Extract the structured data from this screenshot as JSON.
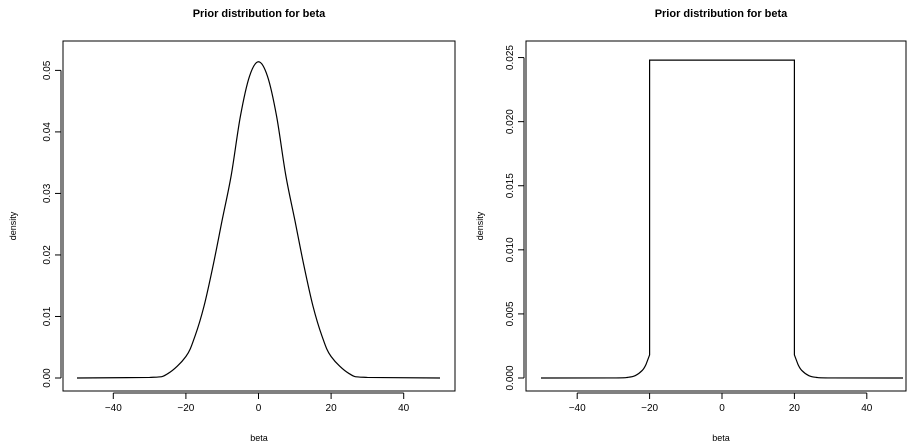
{
  "chart_data": [
    {
      "type": "line",
      "title": "Prior distribution for beta",
      "xlabel": "beta",
      "ylabel": "density",
      "xlim": [
        -50,
        50
      ],
      "ylim": [
        0,
        0.0525
      ],
      "xticks": [
        -40,
        -20,
        0,
        20,
        40
      ],
      "xtick_labels": [
        "−40",
        "−20",
        "0",
        "20",
        "40"
      ],
      "yticks": [
        0,
        0.01,
        0.02,
        0.03,
        0.04,
        0.05
      ],
      "ytick_labels": [
        "0.00",
        "0.01",
        "0.02",
        "0.03",
        "0.04",
        "0.05"
      ],
      "grid": false,
      "line_color": "#000000",
      "series": [
        {
          "x": [
            -50,
            -30,
            -25,
            -20,
            -17.5,
            -15,
            -12.5,
            -10,
            -7.5,
            -5,
            -2.5,
            0,
            2.5,
            5,
            7.5,
            10,
            12.5,
            15,
            17.5,
            20,
            25,
            30,
            50
          ],
          "y": [
            0.0,
            9e-05,
            0.0007,
            0.0035,
            0.0068,
            0.0117,
            0.0183,
            0.0257,
            0.033,
            0.0425,
            0.049,
            0.0514,
            0.049,
            0.0425,
            0.033,
            0.0257,
            0.0183,
            0.0117,
            0.0068,
            0.0035,
            0.0007,
            9e-05,
            0.0
          ]
        }
      ]
    },
    {
      "type": "line",
      "title": "Prior distribution for beta",
      "xlabel": "beta",
      "ylabel": "density",
      "xlim": [
        -50,
        50
      ],
      "ylim": [
        0,
        0.0252
      ],
      "xticks": [
        -40,
        -20,
        0,
        20,
        40
      ],
      "xtick_labels": [
        "−40",
        "−20",
        "0",
        "20",
        "40"
      ],
      "yticks": [
        0,
        0.005,
        0.01,
        0.015,
        0.02,
        0.025
      ],
      "ytick_labels": [
        "0.000",
        "0.005",
        "0.010",
        "0.015",
        "0.020",
        "0.025"
      ],
      "grid": false,
      "line_color": "#000000",
      "series": [
        {
          "x": [
            -50,
            -30,
            -26,
            -24,
            -22,
            -21,
            -20,
            -20,
            20,
            20,
            21,
            22,
            24,
            26,
            30,
            50
          ],
          "y": [
            0.0,
            4e-06,
            5e-05,
            0.00018,
            0.0006,
            0.00105,
            0.0018,
            0.0248,
            0.0248,
            0.0018,
            0.00105,
            0.0006,
            0.00018,
            5e-05,
            4e-06,
            0.0
          ]
        }
      ]
    }
  ]
}
